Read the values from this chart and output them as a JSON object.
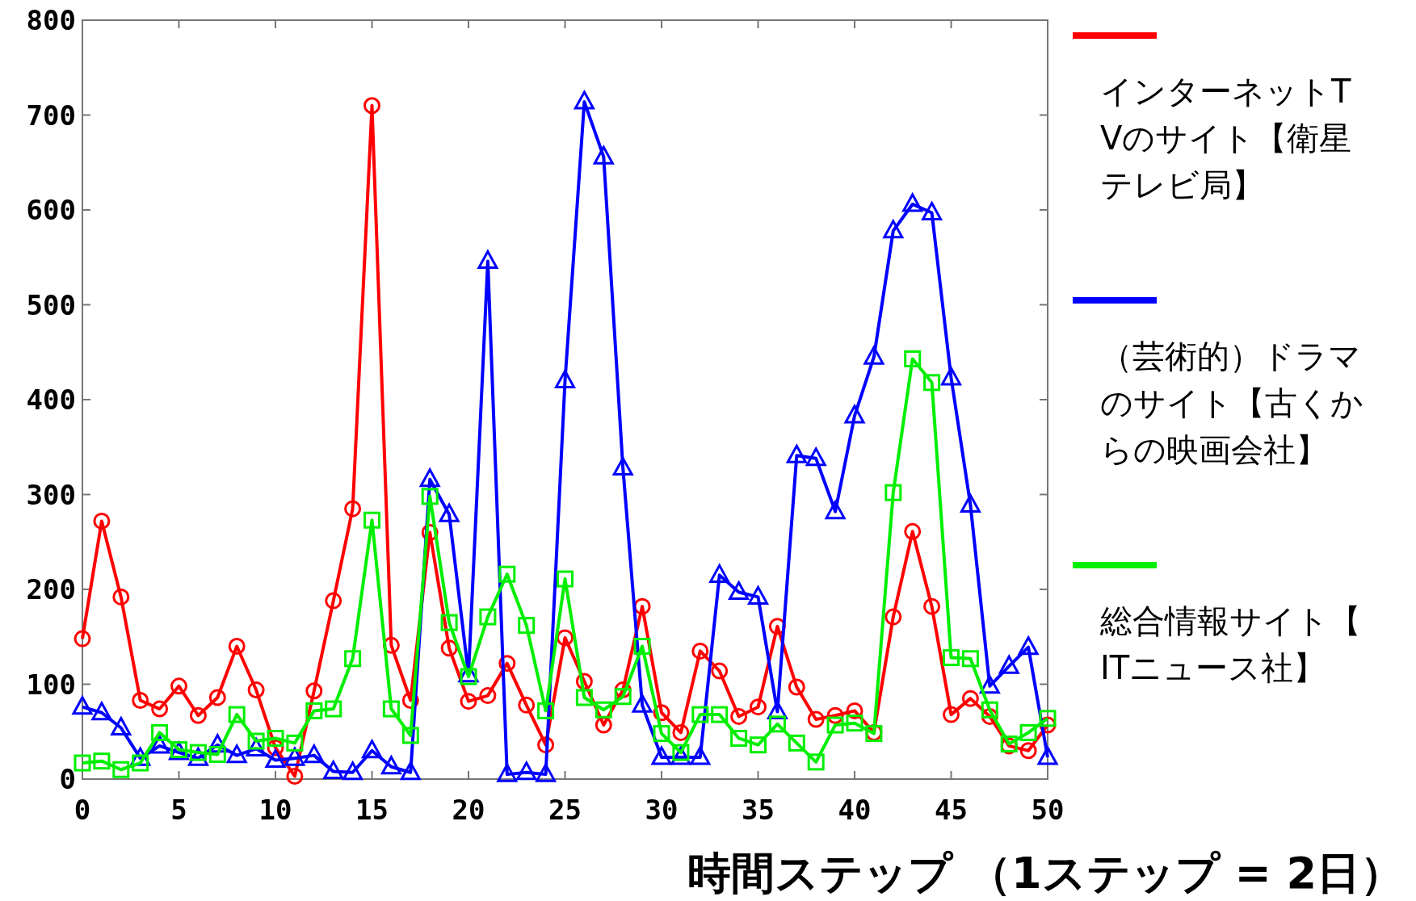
{
  "chart_data": {
    "type": "line",
    "xlabel": "時間ステップ （1ステップ = 2日）",
    "x": [
      0,
      1,
      2,
      3,
      4,
      5,
      6,
      7,
      8,
      9,
      10,
      11,
      12,
      13,
      14,
      15,
      16,
      17,
      18,
      19,
      20,
      21,
      22,
      23,
      24,
      25,
      26,
      27,
      28,
      29,
      30,
      31,
      32,
      33,
      34,
      35,
      36,
      37,
      38,
      39,
      40,
      41,
      42,
      43,
      44,
      45,
      46,
      47,
      48,
      49,
      50
    ],
    "xlim": [
      0,
      50
    ],
    "xticks": [
      0,
      5,
      10,
      15,
      20,
      25,
      30,
      35,
      40,
      45,
      50
    ],
    "ylim": [
      0,
      800
    ],
    "yticks": [
      0,
      100,
      200,
      300,
      400,
      500,
      600,
      700,
      800
    ],
    "grid": false,
    "legend": "right",
    "series": [
      {
        "name": "インターネットTVのサイト【衛星テレビ局】",
        "color": "#ff0000",
        "marker": "circle",
        "values": [
          148,
          272,
          192,
          83,
          74,
          98,
          67,
          86,
          140,
          94,
          33,
          3,
          93,
          188,
          285,
          710,
          141,
          83,
          260,
          138,
          82,
          88,
          122,
          78,
          36,
          149,
          103,
          57,
          94,
          182,
          70,
          49,
          135,
          114,
          66,
          76,
          161,
          97,
          63,
          67,
          72,
          49,
          171,
          261,
          182,
          68,
          85,
          66,
          35,
          30,
          57
        ]
      },
      {
        "name": "（芸術的）ドラマのサイト【古くからの映画会社】",
        "color": "#0000ff",
        "marker": "triangle",
        "values": [
          76,
          70,
          54,
          22,
          35,
          28,
          22,
          36,
          25,
          32,
          20,
          22,
          25,
          8,
          7,
          30,
          13,
          7,
          316,
          279,
          110,
          546,
          5,
          7,
          5,
          420,
          714,
          656,
          328,
          78,
          23,
          23,
          23,
          215,
          197,
          192,
          71,
          341,
          338,
          282,
          383,
          445,
          578,
          606,
          597,
          423,
          289,
          98,
          119,
          139,
          23
        ]
      },
      {
        "name": "総合情報サイト【ITニュース社】",
        "color": "#00ee00",
        "marker": "square",
        "values": [
          17,
          19,
          10,
          17,
          49,
          31,
          28,
          26,
          68,
          40,
          43,
          38,
          72,
          74,
          127,
          273,
          74,
          46,
          298,
          165,
          108,
          171,
          216,
          162,
          72,
          211,
          86,
          73,
          87,
          140,
          48,
          28,
          68,
          68,
          43,
          36,
          58,
          38,
          18,
          57,
          59,
          48,
          302,
          443,
          418,
          128,
          127,
          73,
          37,
          49,
          64
        ]
      }
    ]
  }
}
